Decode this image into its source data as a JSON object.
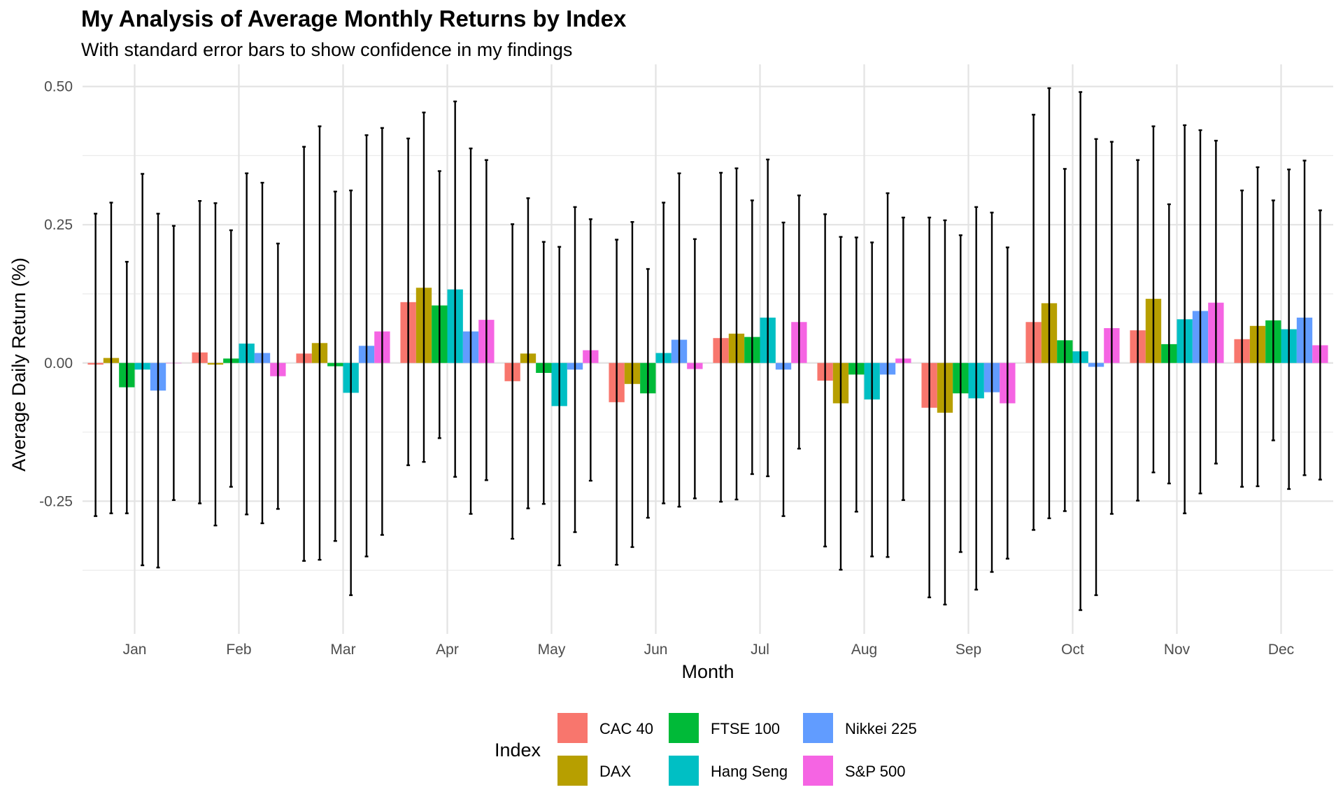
{
  "chart_data": {
    "type": "bar",
    "title": "My Analysis of Average Monthly Returns by Index",
    "subtitle": "With standard error bars to show confidence in my findings",
    "xlabel": "Month",
    "ylabel": "Average Daily Return (%)",
    "ylim": [
      -0.49,
      0.54
    ],
    "yticks": [
      {
        "value": 0.5,
        "label": "0.50"
      },
      {
        "value": 0.25,
        "label": "0.25"
      },
      {
        "value": 0.0,
        "label": "0.00"
      },
      {
        "value": -0.25,
        "label": "-0.25"
      }
    ],
    "grid": true,
    "error_bars": "standard error",
    "legend": {
      "title": "Index",
      "position": "bottom"
    },
    "categories": [
      "Jan",
      "Feb",
      "Mar",
      "Apr",
      "May",
      "Jun",
      "Jul",
      "Aug",
      "Sep",
      "Oct",
      "Nov",
      "Dec"
    ],
    "series": [
      {
        "name": "CAC 40",
        "color": "#F8766D",
        "values": [
          -0.003,
          0.019,
          0.017,
          0.11,
          -0.033,
          -0.071,
          0.045,
          -0.032,
          -0.081,
          0.074,
          0.059,
          0.043
        ],
        "err_high": [
          0.27,
          0.293,
          0.391,
          0.406,
          0.251,
          0.223,
          0.344,
          0.269,
          0.263,
          0.449,
          0.367,
          0.312
        ],
        "err_low": [
          -0.277,
          -0.254,
          -0.358,
          -0.185,
          -0.318,
          -0.365,
          -0.251,
          -0.332,
          -0.424,
          -0.302,
          -0.249,
          -0.224
        ]
      },
      {
        "name": "DAX",
        "color": "#B79F00",
        "values": [
          0.009,
          -0.003,
          0.036,
          0.136,
          0.017,
          -0.038,
          0.053,
          -0.073,
          -0.09,
          0.108,
          0.116,
          0.067
        ],
        "err_high": [
          0.29,
          0.289,
          0.428,
          0.453,
          0.298,
          0.255,
          0.352,
          0.228,
          0.258,
          0.497,
          0.428,
          0.354
        ],
        "err_low": [
          -0.272,
          -0.294,
          -0.356,
          -0.179,
          -0.263,
          -0.333,
          -0.247,
          -0.374,
          -0.437,
          -0.281,
          -0.198,
          -0.223
        ]
      },
      {
        "name": "FTSE 100",
        "color": "#00BA38",
        "values": [
          -0.044,
          0.008,
          -0.006,
          0.104,
          -0.018,
          -0.055,
          0.047,
          -0.021,
          -0.055,
          0.041,
          0.034,
          0.077
        ],
        "err_high": [
          0.183,
          0.24,
          0.31,
          0.347,
          0.219,
          0.17,
          0.294,
          0.227,
          0.231,
          0.351,
          0.287,
          0.294
        ],
        "err_low": [
          -0.272,
          -0.224,
          -0.322,
          -0.136,
          -0.255,
          -0.28,
          -0.201,
          -0.269,
          -0.342,
          -0.268,
          -0.218,
          -0.14
        ]
      },
      {
        "name": "Hang Seng",
        "color": "#00BFC4",
        "values": [
          -0.012,
          0.035,
          -0.054,
          0.133,
          -0.078,
          0.018,
          0.082,
          -0.066,
          -0.064,
          0.021,
          0.079,
          0.061
        ],
        "err_high": [
          0.342,
          0.343,
          0.312,
          0.473,
          0.21,
          0.29,
          0.368,
          0.218,
          0.282,
          0.49,
          0.43,
          0.35
        ],
        "err_low": [
          -0.366,
          -0.274,
          -0.42,
          -0.206,
          -0.366,
          -0.254,
          -0.205,
          -0.35,
          -0.41,
          -0.447,
          -0.272,
          -0.228
        ]
      },
      {
        "name": "Nikkei 225",
        "color": "#619CFF",
        "values": [
          -0.05,
          0.018,
          0.031,
          0.057,
          -0.012,
          0.042,
          -0.012,
          -0.021,
          -0.053,
          -0.007,
          0.094,
          0.082
        ],
        "err_high": [
          0.27,
          0.326,
          0.412,
          0.388,
          0.282,
          0.343,
          0.254,
          0.307,
          0.272,
          0.405,
          0.421,
          0.366
        ],
        "err_low": [
          -0.37,
          -0.29,
          -0.35,
          -0.273,
          -0.306,
          -0.26,
          -0.277,
          -0.351,
          -0.378,
          -0.42,
          -0.236,
          -0.203
        ]
      },
      {
        "name": "S&P 500",
        "color": "#F564E3",
        "values": [
          0.0,
          -0.024,
          0.057,
          0.078,
          0.023,
          -0.011,
          0.074,
          0.008,
          -0.073,
          0.063,
          0.109,
          0.032
        ],
        "err_high": [
          0.248,
          0.216,
          0.425,
          0.367,
          0.26,
          0.224,
          0.303,
          0.263,
          0.209,
          0.4,
          0.402,
          0.276
        ],
        "err_low": [
          -0.248,
          -0.264,
          -0.311,
          -0.212,
          -0.213,
          -0.245,
          -0.155,
          -0.248,
          -0.354,
          -0.273,
          -0.182,
          -0.211
        ]
      }
    ]
  }
}
